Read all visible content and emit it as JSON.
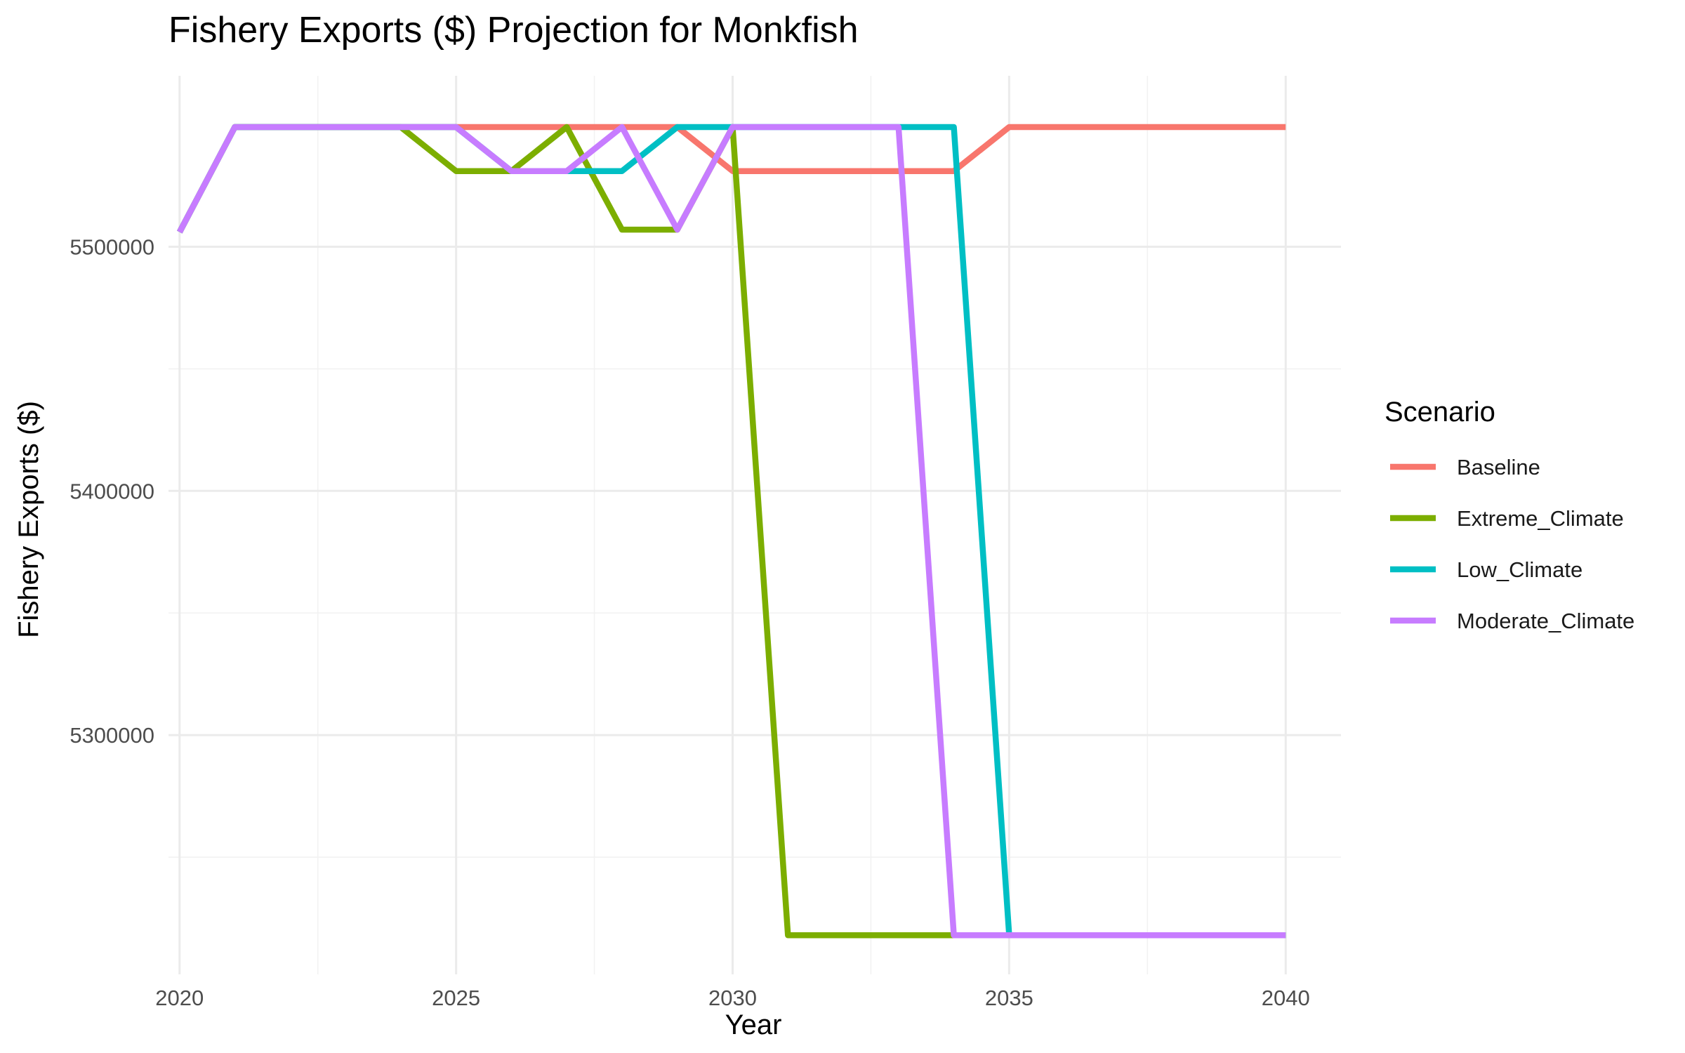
{
  "chart_data": {
    "type": "line",
    "title": "Fishery Exports ($) Projection for Monkfish",
    "xlabel": "Year",
    "ylabel": "Fishery Exports ($)",
    "xlim": [
      2019.8,
      2041.0
    ],
    "ylim": [
      5202000,
      5570000
    ],
    "x_ticks": [
      2020,
      2025,
      2030,
      2035,
      2040
    ],
    "x_tick_labels": [
      "2020",
      "2025",
      "2030",
      "2035",
      "2040"
    ],
    "y_ticks": [
      5300000,
      5400000,
      5500000
    ],
    "y_tick_labels": [
      "5300000",
      "5400000",
      "5500000"
    ],
    "legend_title": "Scenario",
    "legend_position": "right",
    "grid": true,
    "x": [
      2020,
      2021,
      2022,
      2023,
      2024,
      2025,
      2026,
      2027,
      2028,
      2029,
      2030,
      2031,
      2032,
      2033,
      2034,
      2035,
      2036,
      2037,
      2038,
      2039,
      2040
    ],
    "series": [
      {
        "name": "Baseline",
        "color": "#F8766D",
        "values": [
          5506000,
          5549000,
          5549000,
          5549000,
          5549000,
          5549000,
          5549000,
          5549000,
          5549000,
          5549000,
          5531000,
          5531000,
          5531000,
          5531000,
          5531000,
          5549000,
          5549000,
          5549000,
          5549000,
          5549000,
          5549000
        ]
      },
      {
        "name": "Extreme_Climate",
        "color": "#7CAE00",
        "values": [
          5506000,
          5549000,
          5549000,
          5549000,
          5549000,
          5531000,
          5531000,
          5549000,
          5507000,
          5507000,
          5549000,
          5218000,
          5218000,
          5218000,
          5218000,
          5218000,
          5218000,
          5218000,
          5218000,
          5218000,
          5218000
        ]
      },
      {
        "name": "Low_Climate",
        "color": "#00BFC4",
        "values": [
          5506000,
          5549000,
          5549000,
          5549000,
          5549000,
          5549000,
          5531000,
          5531000,
          5531000,
          5549000,
          5549000,
          5549000,
          5549000,
          5549000,
          5549000,
          5218000,
          5218000,
          5218000,
          5218000,
          5218000,
          5218000
        ]
      },
      {
        "name": "Moderate_Climate",
        "color": "#C77CFF",
        "values": [
          5506000,
          5549000,
          5549000,
          5549000,
          5549000,
          5549000,
          5531000,
          5531000,
          5549000,
          5507000,
          5549000,
          5549000,
          5549000,
          5549000,
          5218000,
          5218000,
          5218000,
          5218000,
          5218000,
          5218000,
          5218000
        ]
      }
    ]
  }
}
